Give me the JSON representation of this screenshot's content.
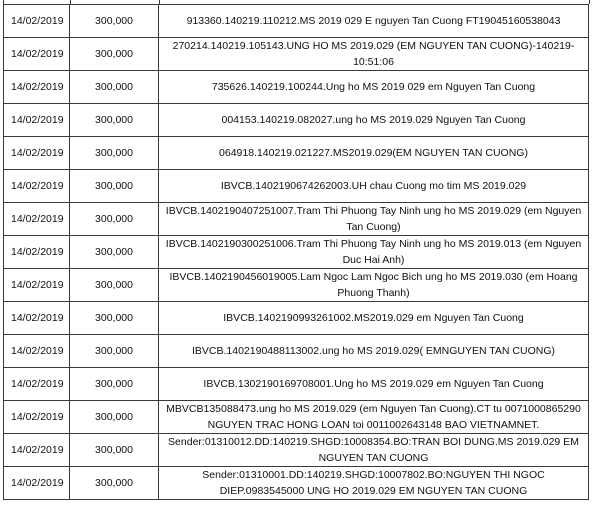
{
  "rows": [
    {
      "date": "14/02/2019",
      "amount": "300,000",
      "description": "913360.140219.110212.MS 2019 029 E nguyen Tan Cuong FT19045160538043"
    },
    {
      "date": "14/02/2019",
      "amount": "300,000",
      "description": "270214.140219.105143.UNG HO MS 2019.029 (EM NGUYEN TAN CUONG)-140219-10:51:06"
    },
    {
      "date": "14/02/2019",
      "amount": "300,000",
      "description": "735626.140219.100244.Ung ho MS 2019 029 em Nguyen Tan Cuong"
    },
    {
      "date": "14/02/2019",
      "amount": "300,000",
      "description": "004153.140219.082027.ung ho MS 2019.029 Nguyen Tan Cuong"
    },
    {
      "date": "14/02/2019",
      "amount": "300,000",
      "description": "064918.140219.021227.MS2019.029(EM NGUYEN TAN CUONG)"
    },
    {
      "date": "14/02/2019",
      "amount": "300,000",
      "description": "IBVCB.1402190674262003.UH chau Cuong mo tim MS 2019.029"
    },
    {
      "date": "14/02/2019",
      "amount": "300,000",
      "description": "IBVCB.1402190407251007.Tram Thi Phuong Tay Ninh ung ho MS 2019.029 (em Nguyen Tan Cuong)"
    },
    {
      "date": "14/02/2019",
      "amount": "300,000",
      "description": "IBVCB.1402190300251006.Tram Thi Phuong Tay Ninh ung ho MS 2019.013 (em Nguyen Duc Hai Anh)"
    },
    {
      "date": "14/02/2019",
      "amount": "300,000",
      "description": "IBVCB.1402190456019005.Lam Ngoc Lam Ngoc Bich ung ho MS 2019.030 (em Hoang Phuong Thanh)"
    },
    {
      "date": "14/02/2019",
      "amount": "300,000",
      "description": "IBVCB.1402190993261002.MS2019.029 em Nguyen Tan Cuong"
    },
    {
      "date": "14/02/2019",
      "amount": "300,000",
      "description": "IBVCB.1402190488113002.ung ho MS 2019.029( EMNGUYEN TAN CUONG)"
    },
    {
      "date": "14/02/2019",
      "amount": "300,000",
      "description": "IBVCB.1302190169708001.Ung ho MS 2019.029 em Nguyen Tan Cuong"
    },
    {
      "date": "14/02/2019",
      "amount": "300,000",
      "description": "MBVCB135088473.ung ho MS 2019.029 (em Nguyen Tan Cuong).CT tu 0071000865290 NGUYEN TRAC HONG LOAN toi 0011002643148 BAO VIETNAMNET."
    },
    {
      "date": "14/02/2019",
      "amount": "300,000",
      "description": "Sender:01310012.DD:140219.SHGD:10008354.BO:TRAN BOI DUNG.MS 2019.029 EM NGUYEN TAN CUONG"
    },
    {
      "date": "14/02/2019",
      "amount": "300,000",
      "description": "Sender:01310001.DD:140219.SHGD:10007802.BO:NGUYEN THI NGOC DIEP.0983545000 UNG HO 2019.029 EM NGUYEN TAN CUONG"
    }
  ]
}
